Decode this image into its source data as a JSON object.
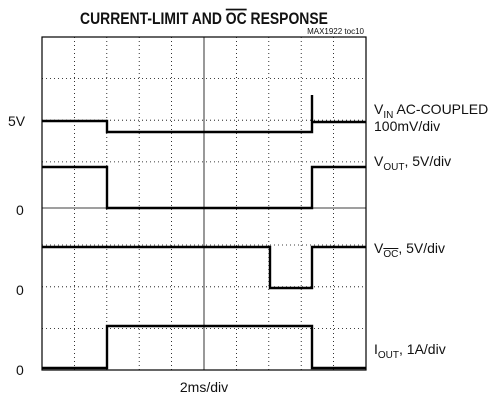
{
  "title": {
    "before": "CURRENT-LIMIT AND ",
    "overlined": "OC",
    "after": " RESPONSE"
  },
  "figure_id": "MAX1922 toc10",
  "left_labels": [
    "5V",
    "0",
    "0",
    "0"
  ],
  "right_labels": [
    {
      "main": "V",
      "sub": "IN",
      "rest": " AC-COUPLED",
      "line2": "100mV/div"
    },
    {
      "main": "V",
      "sub": "OUT",
      "rest": ", 5V/div"
    },
    {
      "main": "V",
      "sub": "OC",
      "rest": ", 5V/div"
    },
    {
      "main": "I",
      "sub": "OUT",
      "rest": ", 1A/div"
    }
  ],
  "x_label": "2ms/div"
}
